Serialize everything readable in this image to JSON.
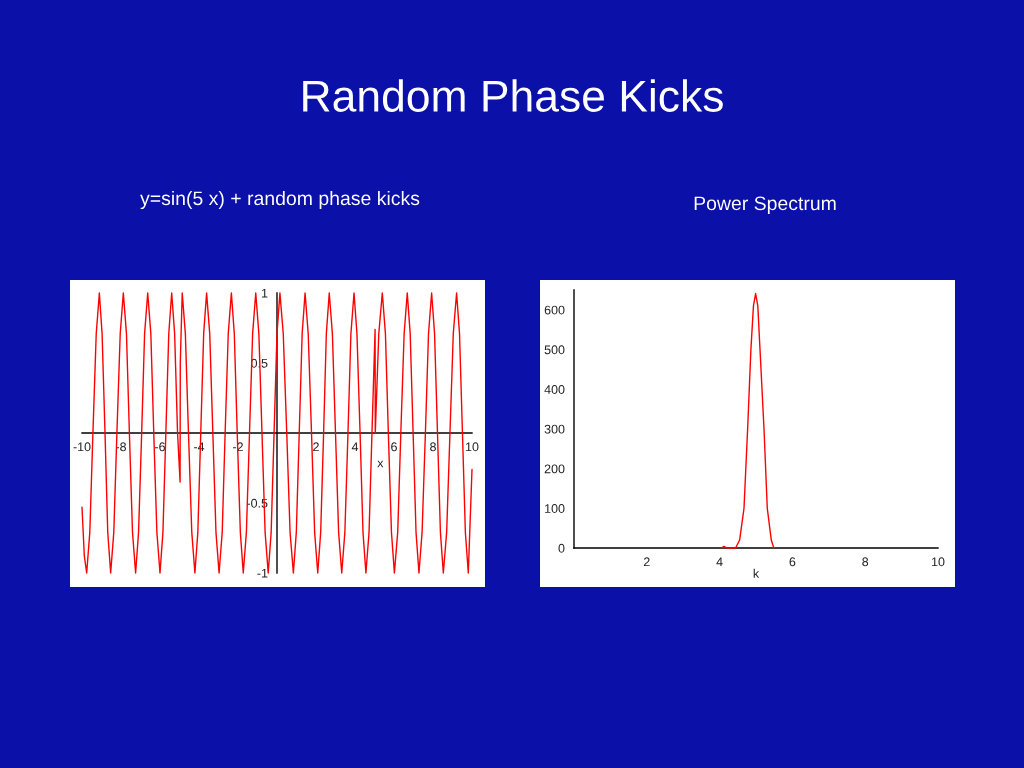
{
  "chart_data": [
    {
      "type": "line",
      "title": "Random Phase Kicks",
      "subtitle": "y=sin(5 x) + random phase kicks",
      "xlabel": "x",
      "xlim": [
        -10,
        10
      ],
      "ylim": [
        -1,
        1
      ],
      "xticks": [
        -10,
        -8,
        -6,
        -4,
        -2,
        2,
        4,
        6,
        8,
        10
      ],
      "yticks": [
        -1,
        -0.5,
        0.5,
        1
      ],
      "series": [
        {
          "color": "#ff0000",
          "x": [
            -10,
            -9.88,
            -9.76,
            -9.6,
            -9.44,
            -9.27,
            -9.11,
            -8.97,
            -8.82,
            -8.68,
            -8.53,
            -8.37,
            -8.21,
            -8.04,
            -7.88,
            -7.72,
            -7.57,
            -7.41,
            -7.25,
            -7.1,
            -6.94,
            -6.79,
            -6.63,
            -6.47,
            -6.32,
            -6.16,
            -6.0,
            -5.85,
            -5.7,
            -5.55,
            -5.4,
            -5.25,
            -5.1,
            -4.97,
            -4.96,
            -4.86,
            -4.7,
            -4.54,
            -4.37,
            -4.21,
            -4.06,
            -3.91,
            -3.76,
            -3.61,
            -3.45,
            -3.29,
            -3.13,
            -2.97,
            -2.81,
            -2.66,
            -2.5,
            -2.34,
            -2.19,
            -2.04,
            -1.88,
            -1.73,
            -1.57,
            -1.41,
            -1.25,
            -1.09,
            -0.93,
            -0.77,
            -0.61,
            -0.45,
            -0.3,
            -0.15,
            0.0,
            0.15,
            0.32,
            0.5,
            0.67,
            0.84,
            0.99,
            1.14,
            1.29,
            1.44,
            1.6,
            1.77,
            1.93,
            2.09,
            2.24,
            2.39,
            2.53,
            2.68,
            2.84,
            3.0,
            3.16,
            3.32,
            3.48,
            3.64,
            3.79,
            3.95,
            4.1,
            4.26,
            4.41,
            4.56,
            4.72,
            4.87,
            5.03,
            5.04,
            5.22,
            5.4,
            5.56,
            5.71,
            5.87,
            6.02,
            6.19,
            6.35,
            6.52,
            6.68,
            6.83,
            6.98,
            7.13,
            7.28,
            7.44,
            7.61,
            7.77,
            7.93,
            8.08,
            8.23,
            8.38,
            8.53,
            8.7,
            8.87,
            9.04,
            9.21,
            9.36,
            9.51,
            9.66,
            9.81,
            10
          ],
          "values": [
            -0.53,
            -0.88,
            -1,
            -0.71,
            0,
            0.71,
            1,
            0.71,
            0,
            -0.71,
            -1,
            -0.71,
            0,
            0.71,
            1,
            0.71,
            0,
            -0.71,
            -1,
            -0.71,
            0,
            0.71,
            1,
            0.71,
            0,
            -0.71,
            -1,
            -0.71,
            0,
            0.71,
            1,
            0.71,
            0,
            -0.35,
            0.5,
            1,
            0.71,
            0,
            -0.71,
            -1,
            -0.71,
            0,
            0.71,
            1,
            0.71,
            0,
            -0.71,
            -1,
            -0.71,
            0,
            0.71,
            1,
            0.71,
            0,
            -0.71,
            -1,
            -0.71,
            0,
            0.71,
            1,
            0.71,
            0,
            -0.71,
            -1,
            -0.71,
            0,
            0.71,
            1,
            0.71,
            0,
            -0.71,
            -1,
            -0.71,
            0,
            0.71,
            1,
            0.71,
            0,
            -0.71,
            -1,
            -0.71,
            0,
            0.71,
            1,
            0.71,
            0,
            -0.71,
            -1,
            -0.71,
            0,
            0.71,
            1,
            0.71,
            0,
            -0.71,
            -1,
            -0.71,
            0,
            0.74,
            0,
            0.71,
            1,
            0.71,
            0,
            -0.71,
            -1,
            -0.71,
            0,
            0.71,
            1,
            0.71,
            0,
            -0.71,
            -1,
            -0.71,
            0,
            0.71,
            1,
            0.71,
            0,
            -0.71,
            -1,
            -0.71,
            0,
            0.71,
            1,
            0.71,
            0,
            -0.71,
            -1,
            -0.26
          ]
        }
      ]
    },
    {
      "type": "line",
      "subtitle": "Power Spectrum",
      "xlabel": "k",
      "xlim": [
        0,
        10
      ],
      "ylim": [
        0,
        650
      ],
      "xticks": [
        2,
        4,
        6,
        8,
        10
      ],
      "yticks": [
        0,
        100,
        200,
        300,
        400,
        500,
        600
      ],
      "series": [
        {
          "color": "#ff0000",
          "x": [
            4.05,
            4.12,
            4.2,
            4.44,
            4.55,
            4.67,
            4.77,
            4.86,
            4.93,
            4.99,
            5.05,
            5.11,
            5.22,
            5.31,
            5.42,
            5.49
          ],
          "values": [
            0,
            4,
            0,
            0,
            20,
            100,
            300,
            500,
            610,
            641,
            610,
            500,
            300,
            100,
            20,
            0
          ]
        }
      ]
    }
  ]
}
